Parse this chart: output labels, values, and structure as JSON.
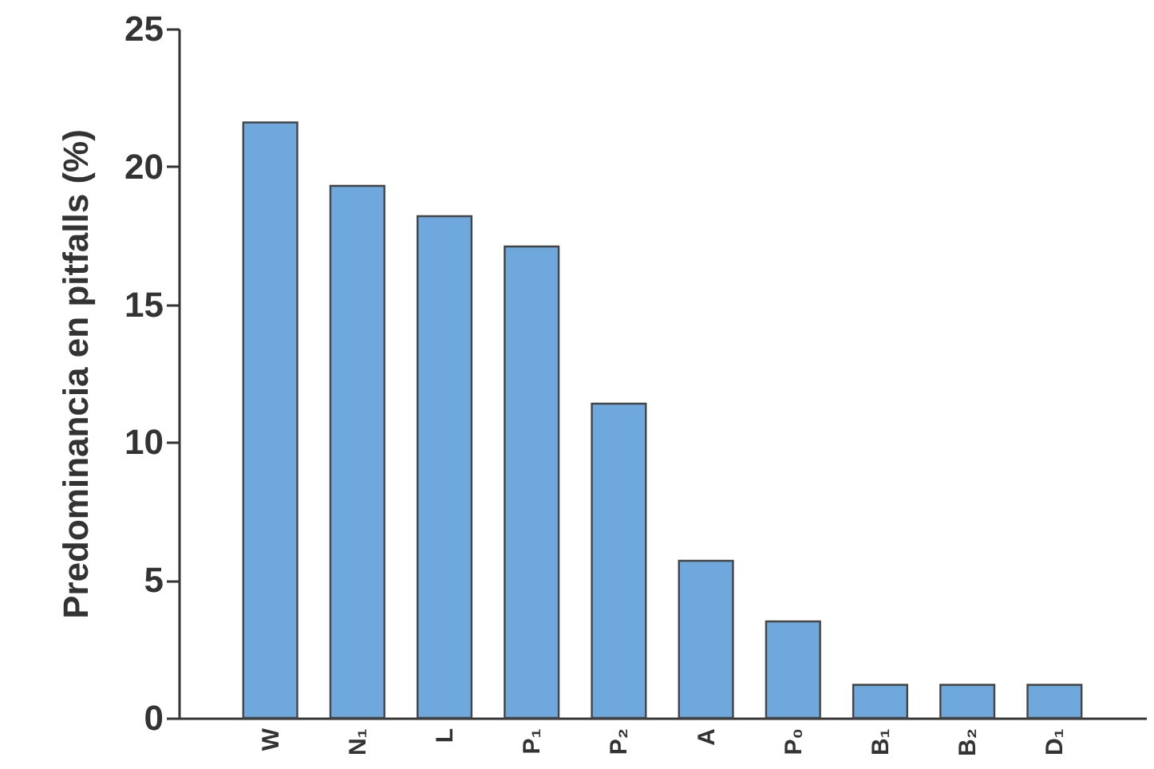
{
  "chart_data": {
    "type": "bar",
    "ylabel": "Predominancia en pitfalls (%)",
    "categories": [
      "W",
      "N₁",
      "L",
      "P₁",
      "P₂",
      "A",
      "P₀",
      "B₁",
      "B₂",
      "D₁"
    ],
    "values": [
      21.6,
      19.3,
      18.2,
      17.1,
      11.4,
      5.7,
      3.5,
      1.2,
      1.2,
      1.2
    ],
    "color": "#6fa8dc",
    "ylim": [
      0,
      25
    ],
    "yticks": [
      0,
      5,
      10,
      15,
      20,
      25
    ],
    "grid": false
  }
}
